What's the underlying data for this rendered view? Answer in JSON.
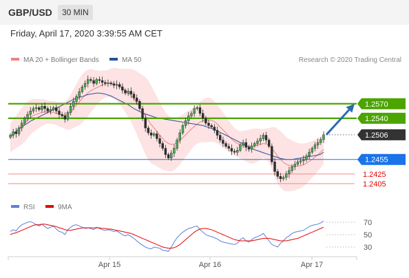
{
  "header": {
    "symbol": "GBP/USD",
    "timeframe": "30 MIN",
    "datetime": "Friday, April 17, 2020 3:39:55 AM CET"
  },
  "legend": {
    "items": [
      {
        "label": "MA 20 + Bollinger Bands",
        "color": "#f08080"
      },
      {
        "label": "MA 50",
        "color": "#2b4e9e"
      }
    ],
    "copyright": "Research © 2020 Trading Central"
  },
  "chart_data": {
    "type": "candlestick",
    "y_range": [
      1.2375,
      1.2645
    ],
    "levels": [
      {
        "value": 1.257,
        "label": "1.2570",
        "kind": "resistance",
        "color": "#4ca400"
      },
      {
        "value": 1.254,
        "label": "1.2540",
        "kind": "resistance",
        "color": "#4ca400"
      },
      {
        "value": 1.2506,
        "label": "1.2506",
        "kind": "last",
        "color": "#333333"
      },
      {
        "value": 1.2455,
        "label": "1.2455",
        "kind": "pivot",
        "color": "#1a73e8"
      },
      {
        "value": 1.2425,
        "label": "1.2425",
        "kind": "support",
        "color": "#e60000"
      },
      {
        "value": 1.2405,
        "label": "1.2405",
        "kind": "support",
        "color": "#e60000"
      }
    ],
    "arrow": {
      "from": 1.2506,
      "to": 1.257,
      "color": "#2b6cb0"
    },
    "x_ticks": [
      "Apr 15",
      "Apr 16",
      "Apr 17"
    ],
    "price_series": [
      1.2505,
      1.2512,
      1.2508,
      1.252,
      1.253,
      1.254,
      1.2548,
      1.2555,
      1.256,
      1.2562,
      1.2558,
      1.2565,
      1.256,
      1.2555,
      1.2558,
      1.2562,
      1.2555,
      1.2548,
      1.2545,
      1.2538,
      1.2552,
      1.2565,
      1.2575,
      1.2585,
      1.2595,
      1.2605,
      1.2612,
      1.262,
      1.2618,
      1.2612,
      1.262,
      1.2618,
      1.2614,
      1.2612,
      1.2613,
      1.2611,
      1.2608,
      1.261,
      1.2605,
      1.2598,
      1.2592,
      1.2596,
      1.259,
      1.2582,
      1.2575,
      1.256,
      1.254,
      1.252,
      1.251,
      1.2505,
      1.2508,
      1.2498,
      1.2488,
      1.2478,
      1.2465,
      1.2458,
      1.2468,
      1.2478,
      1.2495,
      1.251,
      1.2525,
      1.2535,
      1.2545,
      1.255,
      1.256,
      1.2562,
      1.255,
      1.254,
      1.253,
      1.2525,
      1.2522,
      1.2515,
      1.2505,
      1.2495,
      1.2488,
      1.2482,
      1.2478,
      1.2472,
      1.247,
      1.2474,
      1.2485,
      1.249,
      1.248,
      1.2476,
      1.2483,
      1.2488,
      1.2493,
      1.2498,
      1.2505,
      1.2495,
      1.2482,
      1.245,
      1.243,
      1.242,
      1.2415,
      1.2418,
      1.2425,
      1.2432,
      1.244,
      1.2445,
      1.245,
      1.2452,
      1.2455,
      1.2462,
      1.247,
      1.2478,
      1.2485,
      1.249,
      1.2496,
      1.2506
    ],
    "ma20": [
      1.25,
      1.2506,
      1.2512,
      1.2518,
      1.2524,
      1.253,
      1.2536,
      1.2542,
      1.2546,
      1.2548,
      1.255,
      1.2552,
      1.2553,
      1.2553,
      1.2552,
      1.2552,
      1.255,
      1.2548,
      1.2547,
      1.2546,
      1.2548,
      1.2553,
      1.256,
      1.2567,
      1.2574,
      1.2581,
      1.2587,
      1.2592,
      1.2597,
      1.26,
      1.2603,
      1.2606,
      1.2609,
      1.2611,
      1.2612,
      1.2613,
      1.2612,
      1.261,
      1.2606,
      1.2602,
      1.2597,
      1.2592,
      1.2587,
      1.258,
      1.2572,
      1.2563,
      1.2554,
      1.2545,
      1.2536,
      1.2527,
      1.252,
      1.2513,
      1.2505,
      1.2498,
      1.2492,
      1.2488,
      1.2486,
      1.2487,
      1.249,
      1.2494,
      1.25,
      1.2506,
      1.2512,
      1.2518,
      1.2523,
      1.2528,
      1.2532,
      1.2535,
      1.2536,
      1.2537,
      1.2536,
      1.2533,
      1.2528,
      1.2522,
      1.2516,
      1.251,
      1.2503,
      1.2497,
      1.2492,
      1.2488,
      1.2485,
      1.2484,
      1.2483,
      1.2482,
      1.2482,
      1.2483,
      1.2485,
      1.2486,
      1.2488,
      1.2487,
      1.2484,
      1.2478,
      1.247,
      1.2462,
      1.2455,
      1.2449,
      1.2445,
      1.2443,
      1.2442,
      1.2441,
      1.2441,
      1.2442,
      1.2444,
      1.2447,
      1.2451,
      1.2455,
      1.246,
      1.2465,
      1.247,
      1.2476
    ],
    "bb_width": [
      0.003,
      0.0032,
      0.0034,
      0.0036,
      0.0038,
      0.0038,
      0.0038,
      0.0036,
      0.0034,
      0.0032,
      0.003,
      0.0028,
      0.0026,
      0.0024,
      0.0024,
      0.0024,
      0.0024,
      0.0025,
      0.0026,
      0.0028,
      0.0032,
      0.0036,
      0.004,
      0.0044,
      0.0048,
      0.005,
      0.005,
      0.0048,
      0.0045,
      0.004,
      0.0036,
      0.0032,
      0.003,
      0.0028,
      0.0028,
      0.003,
      0.0032,
      0.0034,
      0.0036,
      0.004,
      0.0045,
      0.005,
      0.0055,
      0.006,
      0.0065,
      0.007,
      0.0075,
      0.008,
      0.0082,
      0.008,
      0.0076,
      0.0072,
      0.0068,
      0.0064,
      0.006,
      0.0058,
      0.0056,
      0.0054,
      0.0052,
      0.005,
      0.0048,
      0.0046,
      0.0044,
      0.0042,
      0.004,
      0.004,
      0.0042,
      0.0044,
      0.0046,
      0.0046,
      0.0044,
      0.0042,
      0.004,
      0.0038,
      0.0036,
      0.0034,
      0.0032,
      0.003,
      0.0028,
      0.0028,
      0.0028,
      0.003,
      0.0032,
      0.0034,
      0.0036,
      0.0036,
      0.0034,
      0.0032,
      0.003,
      0.0032,
      0.0036,
      0.0044,
      0.0052,
      0.0056,
      0.0058,
      0.0058,
      0.0056,
      0.0054,
      0.0052,
      0.005,
      0.0048,
      0.0046,
      0.0044,
      0.0042,
      0.004,
      0.0038,
      0.0036,
      0.0034,
      0.0032,
      0.003
    ],
    "ma50": [
      1.2503,
      1.2508,
      1.2513,
      1.2518,
      1.2522,
      1.2526,
      1.253,
      1.2534,
      1.2537,
      1.254,
      1.2543,
      1.2546,
      1.2549,
      1.2552,
      1.2555,
      1.2558,
      1.2561,
      1.2564,
      1.2567,
      1.257,
      1.2573,
      1.2576,
      1.2579,
      1.2581,
      1.2583,
      1.2585,
      1.2587,
      1.2589,
      1.259,
      1.2591,
      1.2592,
      1.2592,
      1.2591,
      1.259,
      1.2588,
      1.2586,
      1.2583,
      1.258,
      1.2577,
      1.2574,
      1.2571,
      1.2568,
      1.2564,
      1.256,
      1.2557,
      1.2554,
      1.2551,
      1.2549,
      1.2547,
      1.2545,
      1.2543,
      1.2541,
      1.254,
      1.2539,
      1.2538,
      1.2537,
      1.2536,
      1.2535,
      1.2534,
      1.2533,
      1.2532,
      1.2531,
      1.253,
      1.2529,
      1.2528,
      1.2527,
      1.2526,
      1.2525,
      1.2523,
      1.2521,
      1.2519,
      1.2517,
      1.2514,
      1.2511,
      1.2508,
      1.2505,
      1.2502,
      1.2499,
      1.2496,
      1.2493,
      1.249,
      1.2487,
      1.2484,
      1.2481,
      1.2478,
      1.2475,
      1.2473,
      1.2471,
      1.2469,
      1.2467,
      1.2465,
      1.2463,
      1.2461,
      1.2459,
      1.2457,
      1.2456,
      1.2455,
      1.2455,
      1.2455,
      1.2456,
      1.2457,
      1.2458,
      1.2459,
      1.246,
      1.2461,
      1.2462,
      1.2463,
      1.2464,
      1.2466,
      1.247
    ],
    "rsi": {
      "legend": [
        {
          "label": "RSI",
          "color": "#5b7fd4"
        },
        {
          "label": "9MA",
          "color": "#e60000"
        }
      ],
      "y_range": [
        20,
        80
      ],
      "ticks": [
        "70",
        "50",
        "30"
      ],
      "rsi_series": [
        55,
        58,
        56,
        62,
        66,
        68,
        70,
        71,
        69,
        66,
        64,
        67,
        63,
        60,
        62,
        64,
        59,
        55,
        54,
        50,
        58,
        62,
        65,
        66,
        64,
        62,
        60,
        61,
        60,
        58,
        62,
        60,
        58,
        57,
        58,
        57,
        55,
        56,
        53,
        50,
        48,
        50,
        47,
        44,
        40,
        36,
        33,
        30,
        28,
        27,
        30,
        29,
        28,
        25,
        24,
        23,
        30,
        38,
        45,
        50,
        54,
        57,
        60,
        61,
        63,
        64,
        58,
        54,
        50,
        48,
        47,
        45,
        43,
        40,
        38,
        37,
        36,
        35,
        34,
        36,
        42,
        45,
        40,
        38,
        42,
        45,
        47,
        49,
        52,
        46,
        40,
        34,
        32,
        30,
        36,
        40,
        45,
        48,
        52,
        54,
        55,
        56,
        57,
        60,
        63,
        65,
        66,
        67,
        69,
        72
      ],
      "ma_series": [
        50,
        52,
        53,
        55,
        57,
        59,
        61,
        63,
        65,
        66,
        66,
        67,
        67,
        66,
        65,
        64,
        63,
        61,
        60,
        58,
        57,
        57,
        58,
        59,
        60,
        61,
        61,
        61,
        61,
        61,
        61,
        61,
        60,
        60,
        59,
        59,
        58,
        57,
        56,
        55,
        54,
        53,
        52,
        50,
        48,
        46,
        44,
        42,
        40,
        38,
        36,
        34,
        32,
        30,
        29,
        28,
        28,
        29,
        31,
        34,
        38,
        42,
        46,
        50,
        54,
        57,
        59,
        60,
        60,
        59,
        58,
        56,
        54,
        52,
        50,
        48,
        46,
        44,
        42,
        41,
        40,
        40,
        40,
        40,
        40,
        41,
        42,
        43,
        44,
        44,
        44,
        43,
        42,
        41,
        40,
        40,
        40,
        41,
        42,
        43,
        44,
        46,
        48,
        50,
        52,
        54,
        56,
        58,
        60,
        62
      ]
    }
  }
}
